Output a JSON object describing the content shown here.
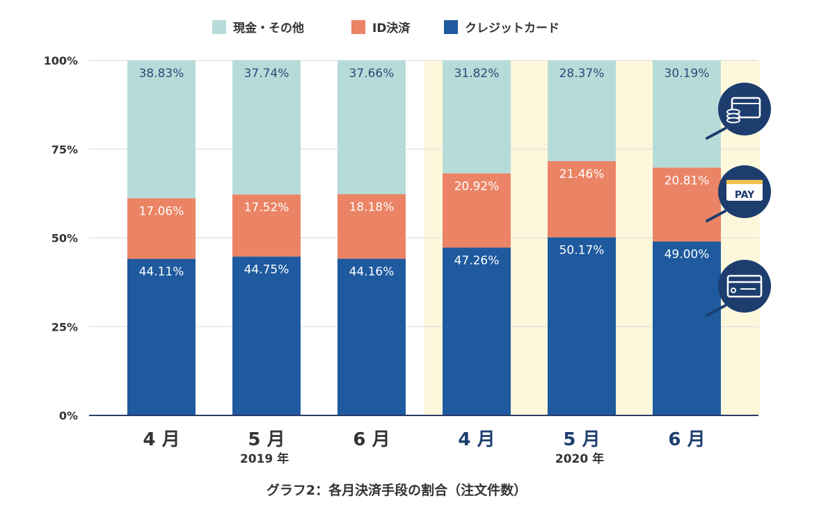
{
  "chart_data": {
    "type": "bar",
    "stacked": true,
    "percent": true,
    "title": "グラフ2：各月決済手段の割合（注文件数）",
    "categories": [
      "4 月",
      "5 月",
      "6 月",
      "4 月",
      "5 月",
      "6 月"
    ],
    "groups": [
      {
        "label": "2019 年",
        "categories": [
          0,
          1,
          2
        ],
        "highlight": false
      },
      {
        "label": "2020 年",
        "categories": [
          3,
          4,
          5
        ],
        "highlight": true
      }
    ],
    "series": [
      {
        "name": "クレジットカード",
        "color": "#1f5a9e",
        "values": [
          44.11,
          44.75,
          44.16,
          47.26,
          50.17,
          49.0
        ],
        "labels": [
          "44.11%",
          "44.75%",
          "44.16%",
          "47.26%",
          "50.17%",
          "49.00%"
        ]
      },
      {
        "name": "ID決済",
        "color": "#ea8465",
        "values": [
          17.06,
          17.52,
          18.18,
          20.92,
          21.46,
          20.81
        ],
        "labels": [
          "17.06%",
          "17.52%",
          "18.18%",
          "20.92%",
          "21.46%",
          "20.81%"
        ]
      },
      {
        "name": "現金・その他",
        "color": "#b6dcd9",
        "values": [
          38.83,
          37.74,
          37.66,
          31.82,
          28.37,
          30.19
        ],
        "labels": [
          "38.83%",
          "37.74%",
          "37.66%",
          "31.82%",
          "28.37%",
          "30.19%"
        ]
      }
    ],
    "legend_order": [
      2,
      1,
      0
    ],
    "yticks": [
      "0%",
      "25%",
      "50%",
      "75%",
      "100%"
    ],
    "ylim": [
      0,
      100
    ],
    "legend_position": "top-center",
    "highlight_color": "#fdf8dc",
    "month_colors": [
      "#333333",
      "#333333",
      "#333333",
      "#1c3d6e",
      "#1c3d6e",
      "#1c3d6e"
    ],
    "icons": [
      {
        "name": "cash-wallet-icon"
      },
      {
        "name": "pay-card-icon",
        "text": "PAY"
      },
      {
        "name": "credit-card-icon"
      }
    ],
    "icon_color": "#1c3d6e"
  }
}
